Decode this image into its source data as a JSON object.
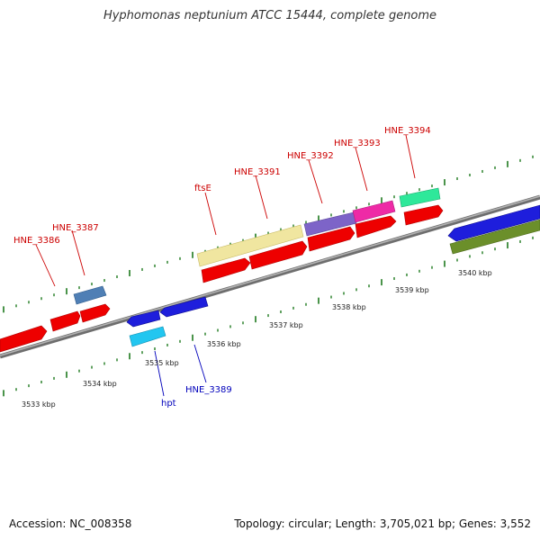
{
  "title": "Hyphomonas neptunium ATCC 15444, complete genome",
  "footer": {
    "accession": "Accession: NC_008358",
    "topology": "Topology: circular; Length: 3,705,021 bp; Genes: 3,552"
  },
  "colors": {
    "backbone": "#8a8a8a",
    "ticks": "#1e7a1e",
    "forward_label": "#cc0000",
    "reverse_label": "#0000bb"
  },
  "gene_labels": [
    {
      "id": "hne3386",
      "text": "HNE_3386",
      "strand": "forward"
    },
    {
      "id": "hne3387",
      "text": "HNE_3387",
      "strand": "forward"
    },
    {
      "id": "ftse",
      "text": "ftsE",
      "strand": "forward"
    },
    {
      "id": "hne3391",
      "text": "HNE_3391",
      "strand": "forward"
    },
    {
      "id": "hne3392",
      "text": "HNE_3392",
      "strand": "forward"
    },
    {
      "id": "hne3393",
      "text": "HNE_3393",
      "strand": "forward"
    },
    {
      "id": "hne3394",
      "text": "HNE_3394",
      "strand": "forward"
    },
    {
      "id": "hpt",
      "text": "hpt",
      "strand": "reverse"
    },
    {
      "id": "hne3389",
      "text": "HNE_3389",
      "strand": "reverse"
    }
  ],
  "scale_labels": [
    "3533 kbp",
    "3534 kbp",
    "3535 kbp",
    "3536 kbp",
    "3537 kbp",
    "3538 kbp",
    "3539 kbp",
    "3540 kbp"
  ]
}
